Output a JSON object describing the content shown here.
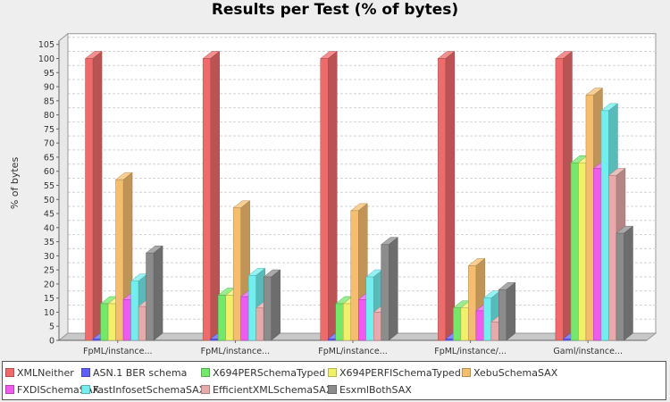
{
  "chart_data": {
    "type": "bar",
    "title": "Results per Test (% of bytes)",
    "xlabel": "",
    "ylabel": "% of bytes",
    "ylim": [
      0,
      105
    ],
    "ytick_step": 5,
    "grid": true,
    "legend_position": "bottom",
    "categories": [
      "FpML/instance...",
      "FpML/instance...",
      "FpML/instance...",
      "FpML/instance/...",
      "Gaml/instance..."
    ],
    "series": [
      {
        "name": "XMLNeither",
        "color": "#ef6a6a",
        "values": [
          100,
          100,
          100,
          100,
          100
        ]
      },
      {
        "name": "ASN.1 BER schema",
        "color": "#5f5fff",
        "values": [
          0.5,
          0.5,
          0.5,
          0.5,
          0.5
        ]
      },
      {
        "name": "X694PERSchemaTyped",
        "color": "#73e86b",
        "values": [
          13,
          16,
          13,
          11.5,
          63
        ]
      },
      {
        "name": "X694PERFISchemaTyped",
        "color": "#f0f06b",
        "values": [
          13,
          16,
          13,
          11.5,
          63
        ]
      },
      {
        "name": "XebuSchemaSAX",
        "color": "#f5be6e",
        "values": [
          57,
          47,
          46,
          26.5,
          87
        ]
      },
      {
        "name": "FXDISchemaSAX",
        "color": "#ef5aef",
        "values": [
          14.5,
          15.5,
          14.5,
          10.5,
          61
        ]
      },
      {
        "name": "FastInfosetSchemaSAX",
        "color": "#72eeee",
        "values": [
          21,
          23,
          22.5,
          15,
          81.5
        ]
      },
      {
        "name": "EfficientXMLSchemaSAX",
        "color": "#e6aaaa",
        "values": [
          12,
          11.5,
          10,
          6.5,
          58.5
        ]
      },
      {
        "name": "EsxmlBothSAX",
        "color": "#8c8c8c",
        "values": [
          31,
          22.5,
          34,
          18,
          38
        ]
      }
    ]
  }
}
